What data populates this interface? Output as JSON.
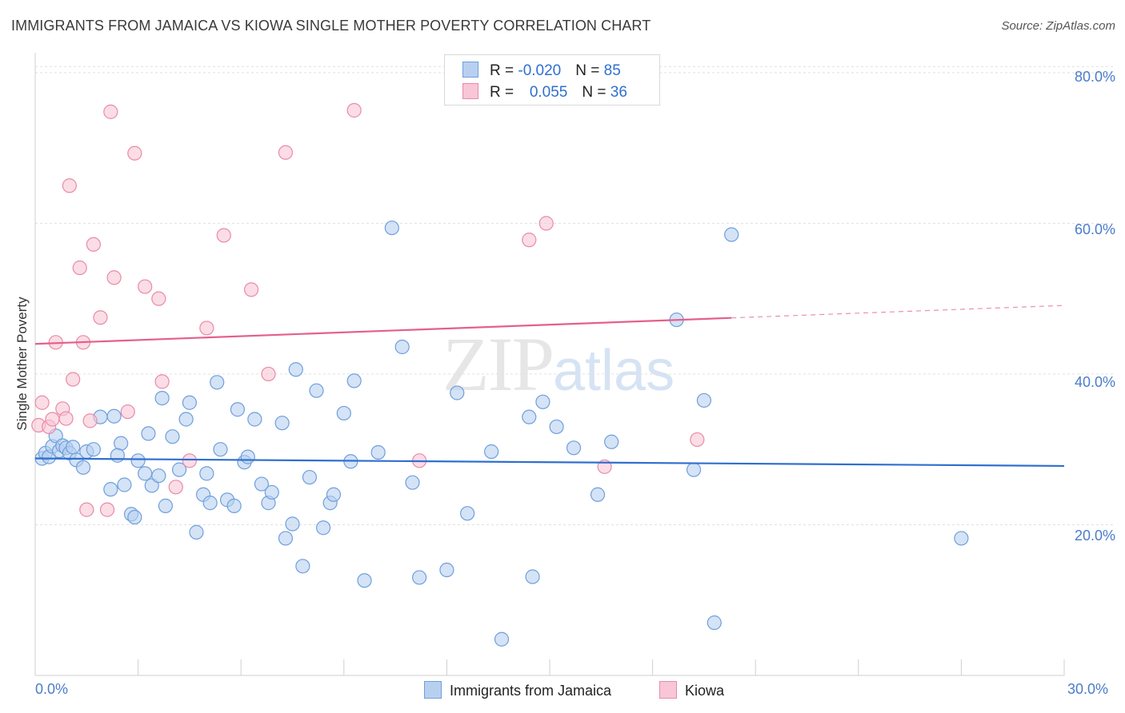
{
  "title": "IMMIGRANTS FROM JAMAICA VS KIOWA SINGLE MOTHER POVERTY CORRELATION CHART",
  "source": "Source: ZipAtlas.com",
  "watermark": {
    "zip": "ZIP",
    "atlas": "atlas"
  },
  "colors": {
    "blue_fill": "#b8d0f0",
    "blue_stroke": "#6f9fdc",
    "blue_line": "#2f6fd0",
    "pink_fill": "#f8c6d6",
    "pink_stroke": "#e98aa9",
    "pink_line": "#e4608a",
    "grid": "#e0e0e0",
    "axis_text": "#4a7ccc"
  },
  "legend": {
    "row1": {
      "r_label": "R = ",
      "r_value": "-0.020",
      "n_label": "N = ",
      "n_value": "85"
    },
    "row2": {
      "r_label": "R = ",
      "r_value": "0.055",
      "n_label": "N = ",
      "n_value": "36"
    }
  },
  "bottom_legend": {
    "series1": "Immigrants from Jamaica",
    "series2": "Kiowa"
  },
  "chart_data": {
    "type": "scatter",
    "title": "IMMIGRANTS FROM JAMAICA VS KIOWA SINGLE MOTHER POVERTY CORRELATION CHART",
    "xlabel": "",
    "ylabel": "Single Mother Poverty",
    "xlim": [
      0,
      30
    ],
    "ylim": [
      0,
      82
    ],
    "x_tick_labels": [
      "0.0%",
      "30.0%"
    ],
    "y_ticks": [
      20,
      40,
      60,
      80
    ],
    "y_tick_labels": [
      "20.0%",
      "40.0%",
      "60.0%",
      "80.0%"
    ],
    "grid": true,
    "legend_position": "top-center",
    "series": [
      {
        "name": "Immigrants from Jamaica",
        "color": "#6f9fdc",
        "R": -0.02,
        "N": 85,
        "trend": {
          "x": [
            0,
            30
          ],
          "y": [
            28.8,
            27.8
          ],
          "dashed_from": null
        },
        "points": [
          [
            0.2,
            28.8
          ],
          [
            0.3,
            29.5
          ],
          [
            0.4,
            29.0
          ],
          [
            0.5,
            30.4
          ],
          [
            0.6,
            31.8
          ],
          [
            0.7,
            29.8
          ],
          [
            0.8,
            30.5
          ],
          [
            0.9,
            30.2
          ],
          [
            1.0,
            29.5
          ],
          [
            1.1,
            30.3
          ],
          [
            1.2,
            28.6
          ],
          [
            1.4,
            27.6
          ],
          [
            1.5,
            29.7
          ],
          [
            1.7,
            30.0
          ],
          [
            1.9,
            34.3
          ],
          [
            2.2,
            24.7
          ],
          [
            2.5,
            30.8
          ],
          [
            2.4,
            29.2
          ],
          [
            2.3,
            34.4
          ],
          [
            2.8,
            21.4
          ],
          [
            3.0,
            28.5
          ],
          [
            3.2,
            26.8
          ],
          [
            3.4,
            25.2
          ],
          [
            3.6,
            26.5
          ],
          [
            2.9,
            21.0
          ],
          [
            3.3,
            32.1
          ],
          [
            3.8,
            22.5
          ],
          [
            4.0,
            31.7
          ],
          [
            4.2,
            27.3
          ],
          [
            4.4,
            34.0
          ],
          [
            4.5,
            36.2
          ],
          [
            4.7,
            19.0
          ],
          [
            4.9,
            24.0
          ],
          [
            5.0,
            26.8
          ],
          [
            5.1,
            22.9
          ],
          [
            5.3,
            38.9
          ],
          [
            5.4,
            30.0
          ],
          [
            5.6,
            23.3
          ],
          [
            5.8,
            22.5
          ],
          [
            5.9,
            35.3
          ],
          [
            6.1,
            28.3
          ],
          [
            6.2,
            29.0
          ],
          [
            6.4,
            34.0
          ],
          [
            6.6,
            25.4
          ],
          [
            6.8,
            22.9
          ],
          [
            6.9,
            24.3
          ],
          [
            7.2,
            33.5
          ],
          [
            7.3,
            18.2
          ],
          [
            7.5,
            20.1
          ],
          [
            7.6,
            40.6
          ],
          [
            7.8,
            14.5
          ],
          [
            8.0,
            26.3
          ],
          [
            8.2,
            37.8
          ],
          [
            8.4,
            19.6
          ],
          [
            8.6,
            22.9
          ],
          [
            8.7,
            24.0
          ],
          [
            9.0,
            34.8
          ],
          [
            9.2,
            28.4
          ],
          [
            9.3,
            39.1
          ],
          [
            9.6,
            12.6
          ],
          [
            10.0,
            29.6
          ],
          [
            10.4,
            59.4
          ],
          [
            10.7,
            43.6
          ],
          [
            11.0,
            25.6
          ],
          [
            11.2,
            13.0
          ],
          [
            12.0,
            14.0
          ],
          [
            12.3,
            37.5
          ],
          [
            12.6,
            21.5
          ],
          [
            13.3,
            29.7
          ],
          [
            13.6,
            4.8
          ],
          [
            14.4,
            34.3
          ],
          [
            14.5,
            13.1
          ],
          [
            14.8,
            36.3
          ],
          [
            15.2,
            33.0
          ],
          [
            15.7,
            30.2
          ],
          [
            16.4,
            24.0
          ],
          [
            16.8,
            31.0
          ],
          [
            18.7,
            47.2
          ],
          [
            19.2,
            27.3
          ],
          [
            19.5,
            36.5
          ],
          [
            19.8,
            7.0
          ],
          [
            20.3,
            58.5
          ],
          [
            27.0,
            18.2
          ],
          [
            3.7,
            36.8
          ],
          [
            2.6,
            25.3
          ]
        ]
      },
      {
        "name": "Kiowa",
        "color": "#e98aa9",
        "R": 0.055,
        "N": 36,
        "trend": {
          "x": [
            0,
            30
          ],
          "y": [
            44.0,
            49.1
          ],
          "dashed_from": 20.3
        },
        "points": [
          [
            0.1,
            33.2
          ],
          [
            0.2,
            36.2
          ],
          [
            0.4,
            33.0
          ],
          [
            0.5,
            34.0
          ],
          [
            0.6,
            44.2
          ],
          [
            0.8,
            35.4
          ],
          [
            0.9,
            34.1
          ],
          [
            1.0,
            65.0
          ],
          [
            1.1,
            39.3
          ],
          [
            1.3,
            54.1
          ],
          [
            1.4,
            44.2
          ],
          [
            1.5,
            22.0
          ],
          [
            1.6,
            33.8
          ],
          [
            1.7,
            57.2
          ],
          [
            1.9,
            47.5
          ],
          [
            2.1,
            22.0
          ],
          [
            2.2,
            74.8
          ],
          [
            2.3,
            52.8
          ],
          [
            2.7,
            35.0
          ],
          [
            2.9,
            69.3
          ],
          [
            3.2,
            51.6
          ],
          [
            3.6,
            50.0
          ],
          [
            3.7,
            39.0
          ],
          [
            4.1,
            25.0
          ],
          [
            4.5,
            28.5
          ],
          [
            5.0,
            46.1
          ],
          [
            5.5,
            58.4
          ],
          [
            6.3,
            51.2
          ],
          [
            6.8,
            40.0
          ],
          [
            7.3,
            69.4
          ],
          [
            9.3,
            75.0
          ],
          [
            11.2,
            28.5
          ],
          [
            14.4,
            57.8
          ],
          [
            14.9,
            60.0
          ],
          [
            16.6,
            27.7
          ],
          [
            19.3,
            31.3
          ]
        ]
      }
    ]
  }
}
